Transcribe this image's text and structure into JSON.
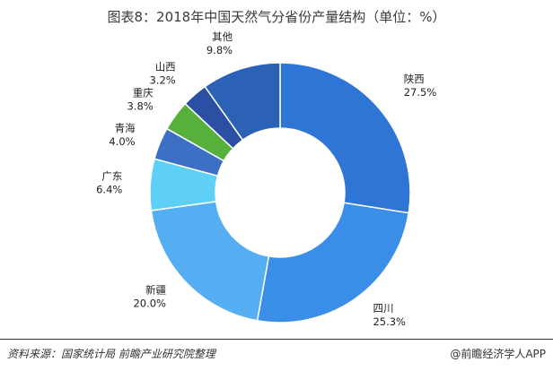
{
  "title": "图表8：2018年中国天然气分省份产量结构（单位：%）",
  "chart_data": {
    "type": "pie",
    "title": "图表8：2018年中国天然气分省份产量结构（单位：%）",
    "slices": [
      {
        "name": "陕西",
        "value": 27.5,
        "label": "27.5%",
        "color": "#2e75d6"
      },
      {
        "name": "四川",
        "value": 25.3,
        "label": "25.3%",
        "color": "#3a8ee8"
      },
      {
        "name": "新疆",
        "value": 20.0,
        "label": "20.0%",
        "color": "#56aef2"
      },
      {
        "name": "广东",
        "value": 6.4,
        "label": "6.4%",
        "color": "#5fd0f5"
      },
      {
        "name": "青海",
        "value": 4.0,
        "label": "4.0%",
        "color": "#3d6fc4"
      },
      {
        "name": "重庆",
        "value": 3.8,
        "label": "3.8%",
        "color": "#58b03c"
      },
      {
        "name": "山西",
        "value": 3.2,
        "label": "3.2%",
        "color": "#2a4fa3"
      },
      {
        "name": "其他",
        "value": 9.8,
        "label": "9.8%",
        "color": "#2b62b5"
      }
    ],
    "start_angle_deg": 0,
    "donut": true
  },
  "footer": {
    "source": "资料来源：国家统计局 前瞻产业研究院整理",
    "brand": "@前瞻经济学人APP"
  }
}
